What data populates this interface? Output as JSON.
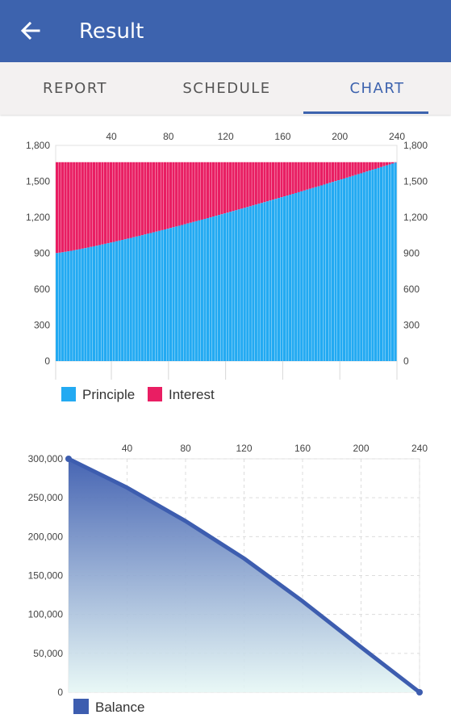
{
  "header": {
    "title": "Result",
    "back_icon": "arrow-left-icon"
  },
  "tabs": [
    {
      "label": "REPORT",
      "active": false
    },
    {
      "label": "SCHEDULE",
      "active": false
    },
    {
      "label": "CHART",
      "active": true
    }
  ],
  "colors": {
    "primary": "#3d63ae",
    "principle": "#23aaf2",
    "interest": "#e91e63",
    "balance": "#3d5daf"
  },
  "chart_data": [
    {
      "type": "bar",
      "stacked": true,
      "x_ticks": [
        "40",
        "80",
        "120",
        "160",
        "200",
        "240"
      ],
      "y_ticks": [
        "0",
        "300",
        "600",
        "900",
        "1,200",
        "1,500",
        "1,800"
      ],
      "ylim": [
        0,
        1800
      ],
      "xlim": [
        1,
        240
      ],
      "x_axis_position": "top",
      "y_axis": "both",
      "legend_position": "bottom-left",
      "series": [
        {
          "name": "Principle",
          "start": 900,
          "end": 1660
        },
        {
          "name": "Interest",
          "start": 760,
          "end": 0
        }
      ],
      "total_payment": 1660
    },
    {
      "type": "area",
      "x_ticks": [
        "40",
        "80",
        "120",
        "160",
        "200",
        "240"
      ],
      "y_ticks": [
        "0",
        "50,000",
        "100,000",
        "150,000",
        "200,000",
        "250,000",
        "300,000"
      ],
      "ylim": [
        0,
        300000
      ],
      "xlim": [
        0,
        240
      ],
      "x_axis_position": "top",
      "grid": true,
      "legend_position": "bottom-left",
      "series": [
        {
          "name": "Balance",
          "x": [
            0,
            40,
            80,
            120,
            160,
            200,
            240
          ],
          "y": [
            300000,
            263000,
            220000,
            172000,
            117000,
            58000,
            0
          ]
        }
      ]
    }
  ]
}
